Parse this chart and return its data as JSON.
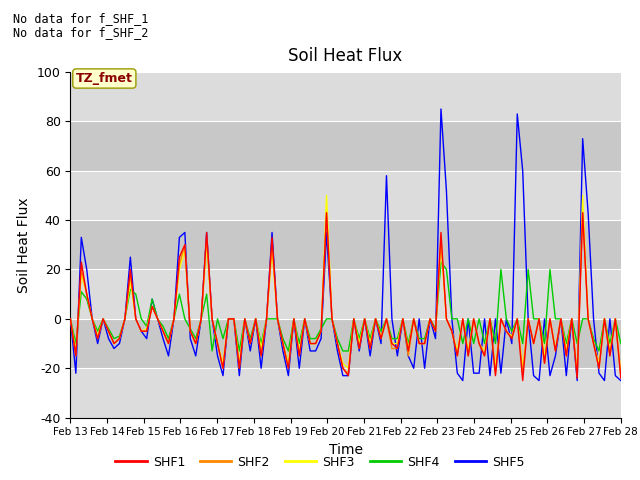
{
  "title": "Soil Heat Flux",
  "xlabel": "Time",
  "ylabel": "Soil Heat Flux",
  "ylim": [
    -40,
    100
  ],
  "annotation1": "No data for f_SHF_1",
  "annotation2": "No data for f_SHF_2",
  "tz_label": "TZ_fmet",
  "xtick_labels": [
    "Feb 13",
    "Feb 14",
    "Feb 15",
    "Feb 16",
    "Feb 17",
    "Feb 18",
    "Feb 19",
    "Feb 20",
    "Feb 21",
    "Feb 22",
    "Feb 23",
    "Feb 24",
    "Feb 25",
    "Feb 26",
    "Feb 27",
    "Feb 28"
  ],
  "ytick_vals": [
    -40,
    -20,
    0,
    20,
    40,
    60,
    80,
    100
  ],
  "colors": {
    "SHF1": "#ff0000",
    "SHF2": "#ff8800",
    "SHF3": "#ffff00",
    "SHF4": "#00cc00",
    "SHF5": "#0000ff"
  },
  "background_color": "#dcdcdc",
  "alt_band_color": "#c8c8c8",
  "n_days": 16,
  "shf1": [
    0,
    -15,
    23,
    10,
    0,
    -8,
    0,
    -5,
    -10,
    -8,
    0,
    20,
    0,
    -5,
    -5,
    5,
    0,
    -5,
    -10,
    0,
    25,
    30,
    -5,
    -10,
    0,
    35,
    0,
    -10,
    -20,
    0,
    0,
    -20,
    0,
    -10,
    0,
    -15,
    0,
    33,
    0,
    -10,
    -20,
    0,
    -15,
    0,
    -10,
    -10,
    -5,
    43,
    0,
    -10,
    -20,
    -23,
    0,
    -12,
    0,
    -12,
    0,
    -8,
    0,
    -10,
    -12,
    0,
    -13,
    0,
    -10,
    -10,
    0,
    -5,
    35,
    0,
    -5,
    -15,
    0,
    -15,
    0,
    -10,
    -15,
    0,
    -23,
    0,
    -5,
    -8,
    0,
    -25,
    0,
    -10,
    0,
    -18,
    0,
    -13,
    0,
    -15,
    0,
    -24,
    43,
    0,
    -10,
    -20,
    0,
    -15,
    0,
    -24
  ],
  "shf2": [
    0,
    -15,
    20,
    10,
    0,
    -8,
    0,
    -5,
    -10,
    -8,
    0,
    18,
    0,
    -5,
    -5,
    5,
    0,
    -5,
    -10,
    0,
    22,
    30,
    -5,
    -10,
    0,
    33,
    0,
    -10,
    -20,
    0,
    0,
    -20,
    0,
    -10,
    0,
    -15,
    0,
    30,
    0,
    -10,
    -20,
    0,
    -15,
    0,
    -10,
    -10,
    -5,
    43,
    0,
    -10,
    -20,
    -22,
    0,
    -12,
    0,
    -12,
    0,
    -8,
    0,
    -12,
    -12,
    0,
    -15,
    0,
    -10,
    -10,
    0,
    -5,
    32,
    0,
    -5,
    -15,
    0,
    -15,
    0,
    -10,
    -15,
    0,
    -22,
    0,
    -5,
    -8,
    0,
    -22,
    0,
    -10,
    0,
    -18,
    0,
    -13,
    0,
    -15,
    0,
    -23,
    43,
    0,
    -10,
    -20,
    0,
    -15,
    0,
    -23
  ],
  "shf3": [
    0,
    -13,
    18,
    10,
    0,
    -7,
    0,
    -5,
    -10,
    -8,
    0,
    15,
    0,
    -5,
    -4,
    5,
    0,
    -5,
    -10,
    0,
    20,
    28,
    -5,
    -10,
    0,
    30,
    0,
    -10,
    -18,
    0,
    0,
    -18,
    0,
    -10,
    0,
    -12,
    0,
    28,
    0,
    -10,
    -18,
    0,
    -13,
    0,
    -10,
    -10,
    -5,
    50,
    0,
    -10,
    -18,
    -20,
    0,
    -10,
    0,
    -10,
    0,
    -7,
    0,
    -10,
    -10,
    0,
    -12,
    0,
    -10,
    -10,
    0,
    -5,
    30,
    0,
    -5,
    -13,
    0,
    -13,
    0,
    -10,
    -13,
    0,
    -20,
    0,
    -5,
    -7,
    0,
    -20,
    0,
    -10,
    0,
    -15,
    0,
    -12,
    0,
    -13,
    0,
    -22,
    50,
    0,
    -10,
    -18,
    0,
    -13,
    0,
    -22
  ],
  "shf4": [
    0,
    -10,
    11,
    8,
    0,
    -5,
    0,
    -4,
    -8,
    -7,
    0,
    12,
    10,
    0,
    -3,
    8,
    0,
    -3,
    -8,
    0,
    10,
    0,
    -4,
    -8,
    0,
    10,
    -13,
    0,
    -8,
    0,
    0,
    -13,
    0,
    -8,
    0,
    -10,
    0,
    0,
    0,
    -8,
    -13,
    0,
    -10,
    0,
    -8,
    -8,
    -4,
    0,
    0,
    -8,
    -13,
    -13,
    0,
    -8,
    0,
    -8,
    0,
    -5,
    0,
    -8,
    -8,
    0,
    -10,
    0,
    -8,
    -8,
    0,
    -4,
    23,
    20,
    0,
    0,
    -10,
    0,
    -10,
    0,
    -10,
    0,
    -10,
    20,
    0,
    -5,
    0,
    -10,
    20,
    0,
    0,
    -10,
    20,
    0,
    0,
    -10,
    0,
    -10,
    0,
    0,
    -8,
    -13,
    0,
    -10,
    0,
    -10
  ],
  "shf5": [
    0,
    -22,
    33,
    20,
    0,
    -10,
    0,
    -8,
    -12,
    -10,
    0,
    25,
    0,
    -5,
    -8,
    8,
    0,
    -8,
    -15,
    0,
    33,
    35,
    -8,
    -15,
    0,
    35,
    0,
    -15,
    -23,
    0,
    0,
    -23,
    0,
    -13,
    0,
    -20,
    0,
    35,
    0,
    -13,
    -23,
    0,
    -20,
    0,
    -13,
    -13,
    -8,
    35,
    0,
    -13,
    -23,
    -23,
    0,
    -13,
    0,
    -15,
    0,
    -10,
    58,
    0,
    -15,
    0,
    -15,
    -20,
    0,
    -20,
    0,
    -8,
    85,
    52,
    0,
    -22,
    -25,
    0,
    -22,
    -22,
    0,
    -23,
    0,
    -22,
    0,
    -10,
    83,
    60,
    0,
    -23,
    -25,
    0,
    -23,
    -15,
    0,
    -23,
    0,
    -25,
    73,
    43,
    0,
    -22,
    -25,
    0,
    -23,
    -25
  ]
}
